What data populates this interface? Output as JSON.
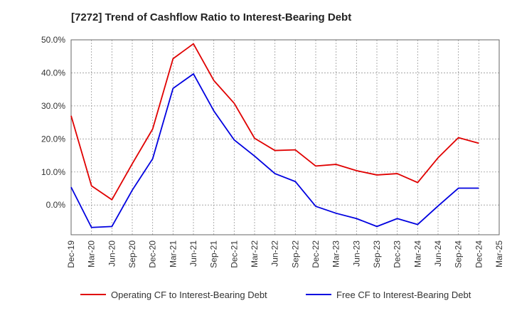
{
  "chart_data": {
    "type": "line",
    "title": "[7272]  Trend of Cashflow Ratio to Interest-Bearing Debt",
    "xlabel": "",
    "ylabel": "",
    "ylim": [
      -9,
      50
    ],
    "yticks": [
      0,
      10,
      20,
      30,
      40,
      50
    ],
    "ytick_labels": [
      "0.0%",
      "10.0%",
      "20.0%",
      "30.0%",
      "40.0%",
      "50.0%"
    ],
    "xtick_labels": [
      "Dec-19",
      "Mar-20",
      "Jun-20",
      "Sep-20",
      "Dec-20",
      "Mar-21",
      "Jun-21",
      "Sep-21",
      "Dec-21",
      "Mar-22",
      "Jun-22",
      "Sep-22",
      "Dec-22",
      "Mar-23",
      "Jun-23",
      "Sep-23",
      "Dec-23",
      "Mar-24",
      "Jun-24",
      "Sep-24",
      "Dec-24",
      "Mar-25"
    ],
    "grid": true,
    "legend_position": "bottom",
    "series": [
      {
        "name": "Operating CF to Interest-Bearing Debt",
        "color": "#e00000",
        "values": [
          27.0,
          5.8,
          1.6,
          12.5,
          23.0,
          44.3,
          48.8,
          37.7,
          30.8,
          20.2,
          16.5,
          16.7,
          11.8,
          12.3,
          10.4,
          9.1,
          9.5,
          6.8,
          14.3,
          20.4,
          18.7,
          null
        ]
      },
      {
        "name": "Free CF to Interest-Bearing Debt",
        "color": "#0000e0",
        "values": [
          5.4,
          -6.8,
          -6.5,
          4.5,
          14.0,
          35.3,
          39.7,
          28.5,
          19.7,
          14.8,
          9.5,
          7.1,
          -0.4,
          -2.5,
          -4.1,
          -6.5,
          -4.1,
          -5.9,
          -0.3,
          5.1,
          5.1,
          null
        ]
      }
    ]
  }
}
